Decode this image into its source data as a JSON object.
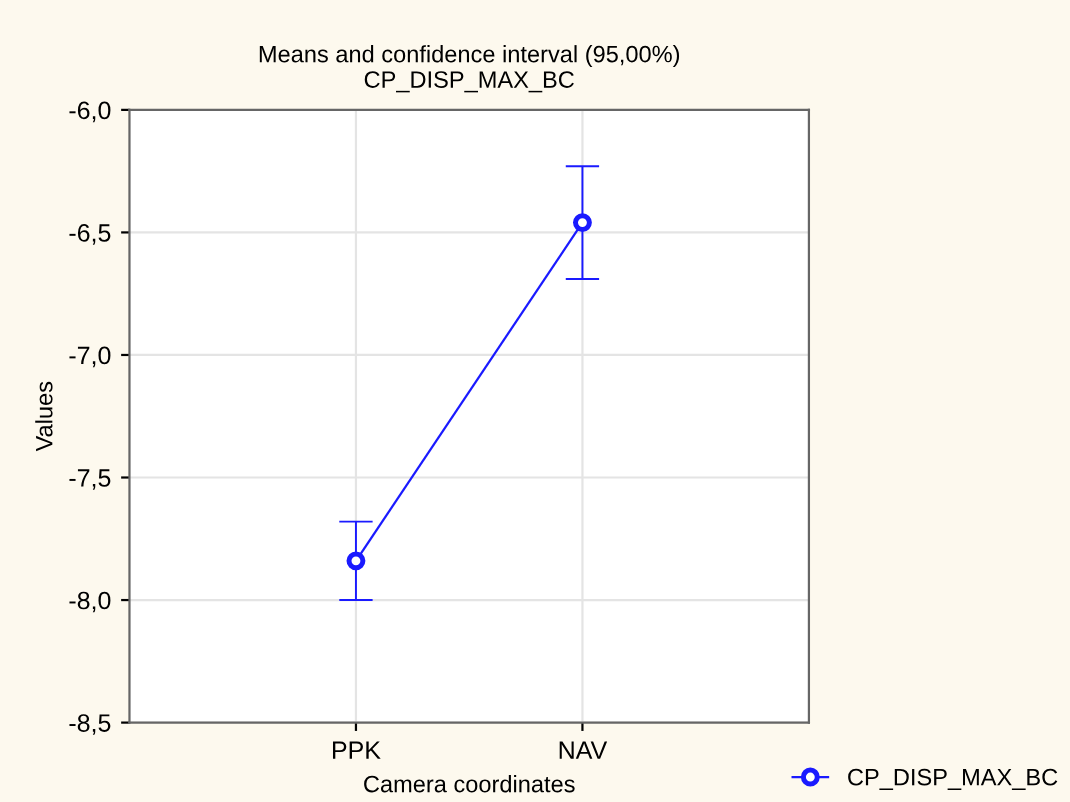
{
  "chart_data": {
    "type": "line",
    "title": "Means and confidence interval (95,00%)",
    "subtitle": "CP_DISP_MAX_BC",
    "xlabel": "Camera coordinates",
    "ylabel": "Values",
    "categories": [
      "PPK",
      "NAV"
    ],
    "series": [
      {
        "name": "CP_DISP_MAX_BC",
        "color": "#1a1aff",
        "values": [
          -7.84,
          -6.46
        ],
        "errors": [
          [
            -8.0,
            -7.68
          ],
          [
            -6.69,
            -6.23
          ]
        ]
      }
    ],
    "ylim": [
      -8.5,
      -6.0
    ],
    "yticks": [
      {
        "value": -8.5,
        "label": "-8,5"
      },
      {
        "value": -8.0,
        "label": "-8,0"
      },
      {
        "value": -7.5,
        "label": "-7,5"
      },
      {
        "value": -7.0,
        "label": "-7,0"
      },
      {
        "value": -6.5,
        "label": "-6,5"
      },
      {
        "value": -6.0,
        "label": "-6,0"
      }
    ],
    "grid": true,
    "legend": "bottom right",
    "marker": "circle",
    "line_style": "solid"
  }
}
